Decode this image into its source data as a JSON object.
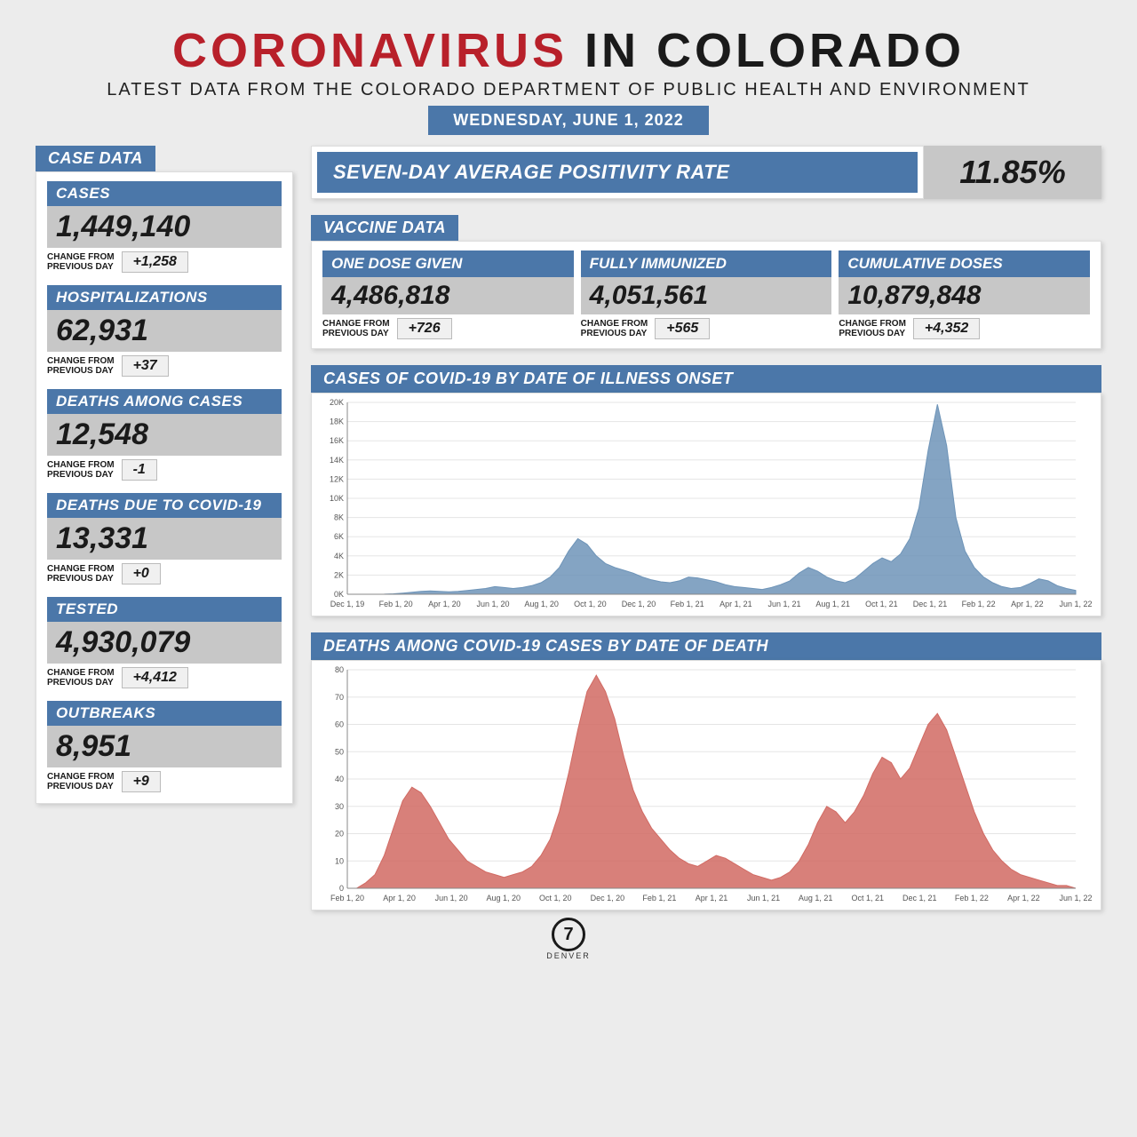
{
  "header": {
    "title_red": "CORONAVIRUS",
    "title_black": " IN COLORADO",
    "subtitle": "LATEST DATA FROM THE COLORADO DEPARTMENT OF PUBLIC HEALTH AND ENVIRONMENT",
    "date": "WEDNESDAY, JUNE 1, 2022"
  },
  "colors": {
    "accent": "#4b77a9",
    "red": "#b8202a",
    "panel_bg": "#ffffff",
    "stat_bg": "#c7c7c7",
    "page_bg": "#ececec",
    "chart_cases_fill": "#6e94b8",
    "chart_deaths_fill": "#d16a63",
    "grid": "#e5e5e5",
    "axis": "#888888"
  },
  "change_label": "CHANGE FROM\nPREVIOUS DAY",
  "case_data": {
    "tab": "CASE DATA",
    "items": [
      {
        "label": "CASES",
        "value": "1,449,140",
        "change": "+1,258"
      },
      {
        "label": "HOSPITALIZATIONS",
        "value": "62,931",
        "change": "+37"
      },
      {
        "label": "DEATHS AMONG CASES",
        "value": "12,548",
        "change": "-1"
      },
      {
        "label": "DEATHS DUE TO COVID-19",
        "value": "13,331",
        "change": "+0"
      },
      {
        "label": "TESTED",
        "value": "4,930,079",
        "change": "+4,412"
      },
      {
        "label": "OUTBREAKS",
        "value": "8,951",
        "change": "+9"
      }
    ]
  },
  "positivity": {
    "label": "SEVEN-DAY AVERAGE POSITIVITY RATE",
    "value": "11.85%"
  },
  "vaccine": {
    "tab": "VACCINE DATA",
    "items": [
      {
        "label": "ONE DOSE GIVEN",
        "value": "4,486,818",
        "change": "+726"
      },
      {
        "label": "FULLY IMMUNIZED",
        "value": "4,051,561",
        "change": "+565"
      },
      {
        "label": "CUMULATIVE DOSES",
        "value": "10,879,848",
        "change": "+4,352"
      }
    ]
  },
  "cases_chart": {
    "title": "CASES OF COVID-19 BY DATE OF ILLNESS ONSET",
    "type": "area",
    "fill_color": "#6e94b8",
    "background_color": "#ffffff",
    "grid_color": "#e5e5e5",
    "axis_color": "#888888",
    "label_fontsize": 9,
    "x_labels": [
      "Dec 1, 19",
      "Feb 1, 20",
      "Apr 1, 20",
      "Jun 1, 20",
      "Aug 1, 20",
      "Oct 1, 20",
      "Dec 1, 20",
      "Feb 1, 21",
      "Apr 1, 21",
      "Jun 1, 21",
      "Aug 1, 21",
      "Oct 1, 21",
      "Dec 1, 21",
      "Feb 1, 22",
      "Apr 1, 22",
      "Jun 1, 22"
    ],
    "y_ticks": [
      "0K",
      "2K",
      "4K",
      "6K",
      "8K",
      "10K",
      "12K",
      "14K",
      "16K",
      "18K",
      "20K"
    ],
    "ylim": [
      0,
      20000
    ],
    "values": [
      0,
      0,
      0,
      0,
      10,
      50,
      120,
      200,
      300,
      350,
      300,
      250,
      300,
      400,
      500,
      600,
      800,
      700,
      600,
      700,
      900,
      1200,
      1800,
      2800,
      4500,
      5800,
      5200,
      4000,
      3200,
      2800,
      2500,
      2200,
      1800,
      1500,
      1300,
      1200,
      1400,
      1800,
      1700,
      1500,
      1300,
      1000,
      800,
      700,
      600,
      500,
      700,
      1000,
      1400,
      2200,
      2800,
      2400,
      1800,
      1400,
      1200,
      1600,
      2400,
      3200,
      3800,
      3400,
      4200,
      5800,
      9000,
      15000,
      19800,
      15500,
      8000,
      4500,
      2800,
      1800,
      1200,
      800,
      600,
      700,
      1100,
      1600,
      1400,
      900,
      600,
      400
    ]
  },
  "deaths_chart": {
    "title": "DEATHS AMONG COVID-19 CASES BY DATE OF DEATH",
    "type": "area",
    "fill_color": "#d16a63",
    "background_color": "#ffffff",
    "grid_color": "#e5e5e5",
    "axis_color": "#888888",
    "label_fontsize": 9,
    "x_labels": [
      "Feb 1, 20",
      "Apr 1, 20",
      "Jun 1, 20",
      "Aug 1, 20",
      "Oct 1, 20",
      "Dec 1, 20",
      "Feb 1, 21",
      "Apr 1, 21",
      "Jun 1, 21",
      "Aug 1, 21",
      "Oct 1, 21",
      "Dec 1, 21",
      "Feb 1, 22",
      "Apr 1, 22",
      "Jun 1, 22"
    ],
    "y_ticks": [
      "0",
      "10",
      "20",
      "30",
      "40",
      "50",
      "60",
      "70",
      "80"
    ],
    "ylim": [
      0,
      80
    ],
    "values": [
      0,
      0,
      2,
      5,
      12,
      22,
      32,
      37,
      35,
      30,
      24,
      18,
      14,
      10,
      8,
      6,
      5,
      4,
      5,
      6,
      8,
      12,
      18,
      28,
      42,
      58,
      72,
      78,
      72,
      62,
      48,
      36,
      28,
      22,
      18,
      14,
      11,
      9,
      8,
      10,
      12,
      11,
      9,
      7,
      5,
      4,
      3,
      4,
      6,
      10,
      16,
      24,
      30,
      28,
      24,
      28,
      34,
      42,
      48,
      46,
      40,
      44,
      52,
      60,
      64,
      58,
      48,
      38,
      28,
      20,
      14,
      10,
      7,
      5,
      4,
      3,
      2,
      1,
      1,
      0
    ]
  },
  "footer": {
    "logo_text": "7",
    "station": "DENVER"
  }
}
